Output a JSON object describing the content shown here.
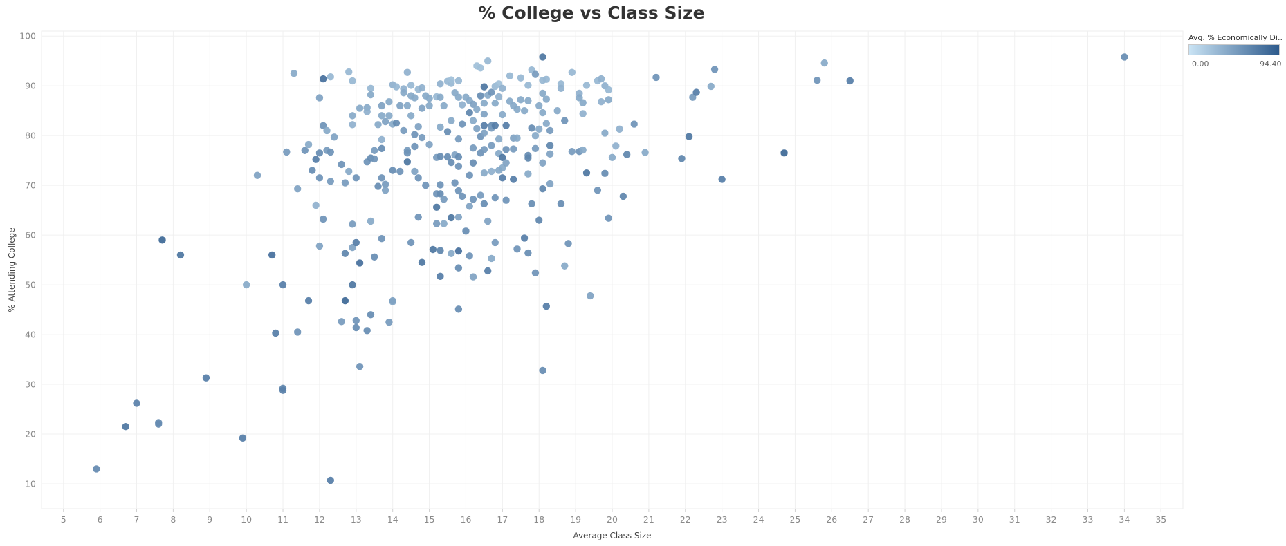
{
  "chart_data": {
    "type": "scatter",
    "title": "% College vs Class Size",
    "xlabel": "Average Class Size",
    "ylabel": "% Attending College",
    "xlim": [
      4.4,
      35.6
    ],
    "ylim": [
      5,
      101
    ],
    "x_ticks": [
      5,
      6,
      7,
      8,
      9,
      10,
      11,
      12,
      13,
      14,
      15,
      16,
      17,
      18,
      19,
      20,
      21,
      22,
      23,
      24,
      25,
      26,
      27,
      28,
      29,
      30,
      31,
      32,
      33,
      34,
      35
    ],
    "y_ticks": [
      10,
      20,
      30,
      40,
      50,
      60,
      70,
      80,
      90,
      100
    ],
    "grid": true,
    "legend": {
      "title": "Avg. % Economically Di..",
      "min_label": "0.00",
      "max_label": "94.40",
      "min": 0.0,
      "max": 94.4,
      "color_low": "#c9e3f4",
      "color_high": "#2d5a8c",
      "placement": "top-right"
    },
    "point_fields": [
      "x",
      "y",
      "econ_pct"
    ],
    "points": [
      [
        5.9,
        13,
        62
      ],
      [
        6.7,
        21.5,
        75
      ],
      [
        7.0,
        26.2,
        68
      ],
      [
        7.6,
        22,
        62
      ],
      [
        7.6,
        22.3,
        60
      ],
      [
        7.7,
        59,
        85
      ],
      [
        8.2,
        56,
        75
      ],
      [
        8.9,
        31.3,
        70
      ],
      [
        9.9,
        19.2,
        70
      ],
      [
        10.0,
        50,
        40
      ],
      [
        10.3,
        72,
        45
      ],
      [
        10.7,
        56,
        80
      ],
      [
        10.8,
        40.3,
        70
      ],
      [
        11.0,
        50,
        70
      ],
      [
        11.0,
        29.2,
        65
      ],
      [
        11.0,
        28.8,
        68
      ],
      [
        11.1,
        76.7,
        50
      ],
      [
        11.3,
        92.5,
        40
      ],
      [
        11.4,
        40.5,
        55
      ],
      [
        11.4,
        69.3,
        45
      ],
      [
        11.6,
        77,
        55
      ],
      [
        11.7,
        78.2,
        40
      ],
      [
        11.7,
        46.8,
        70
      ],
      [
        11.8,
        73,
        60
      ],
      [
        11.9,
        66,
        35
      ],
      [
        11.9,
        75.2,
        70
      ],
      [
        12.0,
        87.6,
        45
      ],
      [
        12.0,
        76.5,
        60
      ],
      [
        12.0,
        71.5,
        55
      ],
      [
        12.0,
        57.8,
        45
      ],
      [
        12.1,
        82,
        55
      ],
      [
        12.1,
        91.4,
        80
      ],
      [
        12.1,
        63.2,
        55
      ],
      [
        12.2,
        77,
        50
      ],
      [
        12.2,
        81,
        40
      ],
      [
        12.3,
        76.7,
        55
      ],
      [
        12.3,
        70.8,
        50
      ],
      [
        12.3,
        91.8,
        30
      ],
      [
        12.3,
        10.7,
        70
      ],
      [
        12.4,
        79.7,
        45
      ],
      [
        12.6,
        74.2,
        55
      ],
      [
        12.6,
        42.6,
        50
      ],
      [
        12.7,
        70.5,
        50
      ],
      [
        12.7,
        56.3,
        65
      ],
      [
        12.7,
        46.8,
        85
      ],
      [
        12.8,
        92.8,
        30
      ],
      [
        12.8,
        72.8,
        40
      ],
      [
        12.9,
        91,
        30
      ],
      [
        12.9,
        82.2,
        35
      ],
      [
        12.9,
        84,
        40
      ],
      [
        12.9,
        62.2,
        50
      ],
      [
        12.9,
        57.5,
        45
      ],
      [
        12.9,
        50,
        75
      ],
      [
        13.0,
        71.5,
        55
      ],
      [
        13.0,
        58.5,
        70
      ],
      [
        13.0,
        42.8,
        55
      ],
      [
        13.0,
        41.4,
        60
      ],
      [
        13.1,
        85.5,
        40
      ],
      [
        13.1,
        54.4,
        80
      ],
      [
        13.1,
        33.6,
        55
      ],
      [
        13.3,
        85.6,
        40
      ],
      [
        13.3,
        84.8,
        35
      ],
      [
        13.3,
        74.7,
        55
      ],
      [
        13.3,
        40.8,
        60
      ],
      [
        13.4,
        89.5,
        30
      ],
      [
        13.4,
        88.2,
        40
      ],
      [
        13.4,
        62.8,
        40
      ],
      [
        13.4,
        75.5,
        60
      ],
      [
        13.4,
        44,
        60
      ],
      [
        13.5,
        75.3,
        55
      ],
      [
        13.5,
        77,
        50
      ],
      [
        13.5,
        55.6,
        60
      ],
      [
        13.6,
        82.2,
        40
      ],
      [
        13.6,
        69.8,
        60
      ],
      [
        13.7,
        86,
        45
      ],
      [
        13.7,
        77.4,
        60
      ],
      [
        13.7,
        71.5,
        55
      ],
      [
        13.7,
        59.3,
        55
      ],
      [
        13.7,
        79.2,
        35
      ],
      [
        13.7,
        84,
        40
      ],
      [
        13.8,
        70.2,
        50
      ],
      [
        13.8,
        69,
        45
      ],
      [
        13.8,
        82.8,
        45
      ],
      [
        13.9,
        84,
        40
      ],
      [
        13.9,
        86.8,
        40
      ],
      [
        13.9,
        42.5,
        50
      ],
      [
        14.0,
        90.2,
        35
      ],
      [
        14.0,
        82.3,
        40
      ],
      [
        14.0,
        73,
        60
      ],
      [
        14.0,
        46.6,
        40
      ],
      [
        14.0,
        46.8,
        45
      ],
      [
        14.1,
        89.8,
        30
      ],
      [
        14.1,
        82.5,
        60
      ],
      [
        14.2,
        72.8,
        55
      ],
      [
        14.2,
        86,
        45
      ],
      [
        14.3,
        89.4,
        35
      ],
      [
        14.3,
        81,
        50
      ],
      [
        14.3,
        88.6,
        40
      ],
      [
        14.4,
        92.7,
        35
      ],
      [
        14.4,
        86,
        40
      ],
      [
        14.4,
        74.7,
        75
      ],
      [
        14.4,
        77,
        50
      ],
      [
        14.4,
        76.5,
        55
      ],
      [
        14.5,
        90.1,
        30
      ],
      [
        14.5,
        88,
        40
      ],
      [
        14.5,
        84,
        40
      ],
      [
        14.5,
        58.5,
        55
      ],
      [
        14.6,
        87.6,
        40
      ],
      [
        14.6,
        80.2,
        55
      ],
      [
        14.6,
        77.8,
        55
      ],
      [
        14.6,
        72.8,
        45
      ],
      [
        14.7,
        89.3,
        30
      ],
      [
        14.7,
        81.8,
        45
      ],
      [
        14.7,
        71.5,
        55
      ],
      [
        14.7,
        63.6,
        55
      ],
      [
        14.8,
        89.6,
        35
      ],
      [
        14.8,
        85.5,
        45
      ],
      [
        14.8,
        79.6,
        50
      ],
      [
        14.8,
        54.5,
        75
      ],
      [
        14.9,
        88,
        40
      ],
      [
        14.9,
        70,
        55
      ],
      [
        15.0,
        87.5,
        40
      ],
      [
        15.0,
        86,
        40
      ],
      [
        15.0,
        78.2,
        45
      ],
      [
        15.1,
        57.1,
        75
      ],
      [
        15.2,
        87.8,
        30
      ],
      [
        15.2,
        75.6,
        50
      ],
      [
        15.2,
        68.3,
        55
      ],
      [
        15.2,
        65.6,
        75
      ],
      [
        15.2,
        62.3,
        50
      ],
      [
        15.3,
        90.4,
        35
      ],
      [
        15.3,
        87.7,
        40
      ],
      [
        15.3,
        81.7,
        40
      ],
      [
        15.3,
        75.8,
        60
      ],
      [
        15.3,
        70.1,
        55
      ],
      [
        15.3,
        68.3,
        60
      ],
      [
        15.3,
        56.9,
        65
      ],
      [
        15.3,
        51.7,
        70
      ],
      [
        15.4,
        86,
        40
      ],
      [
        15.4,
        67.2,
        50
      ],
      [
        15.4,
        62.3,
        40
      ],
      [
        15.5,
        90.9,
        30
      ],
      [
        15.5,
        80.8,
        60
      ],
      [
        15.5,
        75.7,
        60
      ],
      [
        15.6,
        90.5,
        30
      ],
      [
        15.6,
        83,
        40
      ],
      [
        15.6,
        74.6,
        60
      ],
      [
        15.6,
        63.5,
        75
      ],
      [
        15.6,
        56.3,
        40
      ],
      [
        15.6,
        91.2,
        25
      ],
      [
        15.7,
        88.6,
        40
      ],
      [
        15.7,
        76.1,
        45
      ],
      [
        15.7,
        70.5,
        55
      ],
      [
        15.8,
        91,
        30
      ],
      [
        15.8,
        87.7,
        40
      ],
      [
        15.8,
        79.3,
        50
      ],
      [
        15.8,
        75.7,
        60
      ],
      [
        15.8,
        73.8,
        55
      ],
      [
        15.8,
        68.9,
        55
      ],
      [
        15.8,
        63.6,
        45
      ],
      [
        15.8,
        56.8,
        80
      ],
      [
        15.8,
        53.4,
        60
      ],
      [
        15.8,
        45.1,
        60
      ],
      [
        15.9,
        86.2,
        35
      ],
      [
        15.9,
        82.3,
        55
      ],
      [
        15.9,
        67.8,
        55
      ],
      [
        16.0,
        87.7,
        40
      ],
      [
        16.0,
        60.8,
        60
      ],
      [
        16.1,
        87,
        40
      ],
      [
        16.1,
        84.6,
        65
      ],
      [
        16.1,
        72,
        55
      ],
      [
        16.1,
        65.8,
        45
      ],
      [
        16.1,
        55.8,
        55
      ],
      [
        16.2,
        86.3,
        45
      ],
      [
        16.2,
        83,
        40
      ],
      [
        16.2,
        77.5,
        50
      ],
      [
        16.2,
        74.5,
        60
      ],
      [
        16.2,
        67.2,
        55
      ],
      [
        16.2,
        51.6,
        45
      ],
      [
        16.3,
        94,
        25
      ],
      [
        16.3,
        85.3,
        40
      ],
      [
        16.3,
        81.4,
        45
      ],
      [
        16.4,
        93.6,
        25
      ],
      [
        16.4,
        88,
        60
      ],
      [
        16.4,
        79.8,
        55
      ],
      [
        16.4,
        76.5,
        55
      ],
      [
        16.4,
        68,
        50
      ],
      [
        16.5,
        89.8,
        75
      ],
      [
        16.5,
        86.5,
        40
      ],
      [
        16.5,
        84.3,
        45
      ],
      [
        16.5,
        82,
        70
      ],
      [
        16.5,
        80.5,
        45
      ],
      [
        16.5,
        77.2,
        50
      ],
      [
        16.5,
        72.5,
        40
      ],
      [
        16.5,
        66.3,
        60
      ],
      [
        16.6,
        95,
        30
      ],
      [
        16.6,
        88.1,
        40
      ],
      [
        16.6,
        62.8,
        45
      ],
      [
        16.6,
        52.8,
        70
      ],
      [
        16.7,
        88.7,
        55
      ],
      [
        16.7,
        82,
        60
      ],
      [
        16.7,
        81.5,
        50
      ],
      [
        16.7,
        78,
        50
      ],
      [
        16.7,
        72.8,
        35
      ],
      [
        16.7,
        55.3,
        40
      ],
      [
        16.8,
        89.9,
        30
      ],
      [
        16.8,
        86.5,
        40
      ],
      [
        16.8,
        82,
        70
      ],
      [
        16.8,
        67.5,
        55
      ],
      [
        16.8,
        58.5,
        50
      ],
      [
        16.9,
        90.4,
        25
      ],
      [
        16.9,
        87.8,
        35
      ],
      [
        16.9,
        79.3,
        40
      ],
      [
        16.9,
        76.4,
        40
      ],
      [
        16.9,
        73,
        40
      ],
      [
        17.0,
        89.5,
        35
      ],
      [
        17.0,
        84.2,
        40
      ],
      [
        17.0,
        75.6,
        75
      ],
      [
        17.0,
        73.5,
        40
      ],
      [
        17.0,
        71.5,
        70
      ],
      [
        17.1,
        82,
        70
      ],
      [
        17.1,
        77.2,
        55
      ],
      [
        17.1,
        74.5,
        45
      ],
      [
        17.1,
        67,
        55
      ],
      [
        17.2,
        92,
        30
      ],
      [
        17.2,
        86.9,
        40
      ],
      [
        17.3,
        86,
        40
      ],
      [
        17.3,
        79.5,
        45
      ],
      [
        17.3,
        77.3,
        50
      ],
      [
        17.3,
        71.2,
        70
      ],
      [
        17.4,
        85.3,
        40
      ],
      [
        17.4,
        79.5,
        40
      ],
      [
        17.4,
        57.2,
        55
      ],
      [
        17.5,
        91.6,
        30
      ],
      [
        17.5,
        87.2,
        40
      ],
      [
        17.6,
        85,
        40
      ],
      [
        17.6,
        59.4,
        70
      ],
      [
        17.7,
        90.1,
        30
      ],
      [
        17.7,
        87,
        40
      ],
      [
        17.7,
        76,
        60
      ],
      [
        17.7,
        75.5,
        65
      ],
      [
        17.7,
        72.3,
        40
      ],
      [
        17.7,
        56.4,
        60
      ],
      [
        17.8,
        93.2,
        30
      ],
      [
        17.8,
        81.5,
        60
      ],
      [
        17.8,
        66.3,
        60
      ],
      [
        17.9,
        92.3,
        50
      ],
      [
        17.9,
        80,
        40
      ],
      [
        17.9,
        77.4,
        50
      ],
      [
        17.9,
        52.4,
        55
      ],
      [
        18.0,
        86,
        40
      ],
      [
        18.0,
        63,
        65
      ],
      [
        18.0,
        81.3,
        40
      ],
      [
        18.1,
        95.8,
        75
      ],
      [
        18.1,
        91.1,
        30
      ],
      [
        18.1,
        88.5,
        40
      ],
      [
        18.1,
        84.6,
        40
      ],
      [
        18.1,
        74.5,
        45
      ],
      [
        18.1,
        69.3,
        65
      ],
      [
        18.1,
        32.8,
        60
      ],
      [
        18.2,
        91.3,
        30
      ],
      [
        18.2,
        87.3,
        40
      ],
      [
        18.2,
        82.4,
        40
      ],
      [
        18.2,
        45.7,
        70
      ],
      [
        18.3,
        78,
        65
      ],
      [
        18.3,
        76.3,
        45
      ],
      [
        18.3,
        70.3,
        45
      ],
      [
        18.3,
        81,
        50
      ],
      [
        18.5,
        85,
        40
      ],
      [
        18.6,
        90.4,
        30
      ],
      [
        18.6,
        89.5,
        35
      ],
      [
        18.6,
        66.3,
        60
      ],
      [
        18.7,
        83,
        55
      ],
      [
        18.7,
        53.8,
        40
      ],
      [
        18.8,
        58.3,
        55
      ],
      [
        18.9,
        92.7,
        30
      ],
      [
        18.9,
        76.8,
        50
      ],
      [
        19.1,
        88.5,
        35
      ],
      [
        19.1,
        87.6,
        40
      ],
      [
        19.1,
        76.8,
        55
      ],
      [
        19.2,
        84.4,
        35
      ],
      [
        19.2,
        86.6,
        40
      ],
      [
        19.2,
        77.1,
        40
      ],
      [
        19.3,
        72.5,
        75
      ],
      [
        19.3,
        90.1,
        30
      ],
      [
        19.4,
        47.8,
        45
      ],
      [
        19.6,
        91,
        30
      ],
      [
        19.6,
        69,
        55
      ],
      [
        19.7,
        91.4,
        35
      ],
      [
        19.7,
        86.8,
        35
      ],
      [
        19.8,
        90,
        35
      ],
      [
        19.8,
        80.5,
        40
      ],
      [
        19.8,
        72.4,
        60
      ],
      [
        19.9,
        87.2,
        40
      ],
      [
        19.9,
        89.2,
        30
      ],
      [
        19.9,
        63.4,
        55
      ],
      [
        20.0,
        75.6,
        40
      ],
      [
        20.1,
        77.9,
        35
      ],
      [
        20.2,
        81.3,
        35
      ],
      [
        20.3,
        67.8,
        65
      ],
      [
        20.4,
        76.2,
        65
      ],
      [
        20.6,
        82.3,
        55
      ],
      [
        20.9,
        76.6,
        40
      ],
      [
        21.2,
        91.7,
        55
      ],
      [
        21.9,
        75.4,
        65
      ],
      [
        22.1,
        79.8,
        75
      ],
      [
        22.2,
        87.7,
        50
      ],
      [
        22.3,
        88.7,
        70
      ],
      [
        22.7,
        89.9,
        40
      ],
      [
        22.8,
        93.3,
        55
      ],
      [
        23.0,
        71.2,
        70
      ],
      [
        24.7,
        76.5,
        85
      ],
      [
        25.6,
        91.1,
        55
      ],
      [
        25.8,
        94.6,
        40
      ],
      [
        26.5,
        91,
        70
      ],
      [
        34.0,
        95.8,
        60
      ]
    ]
  }
}
